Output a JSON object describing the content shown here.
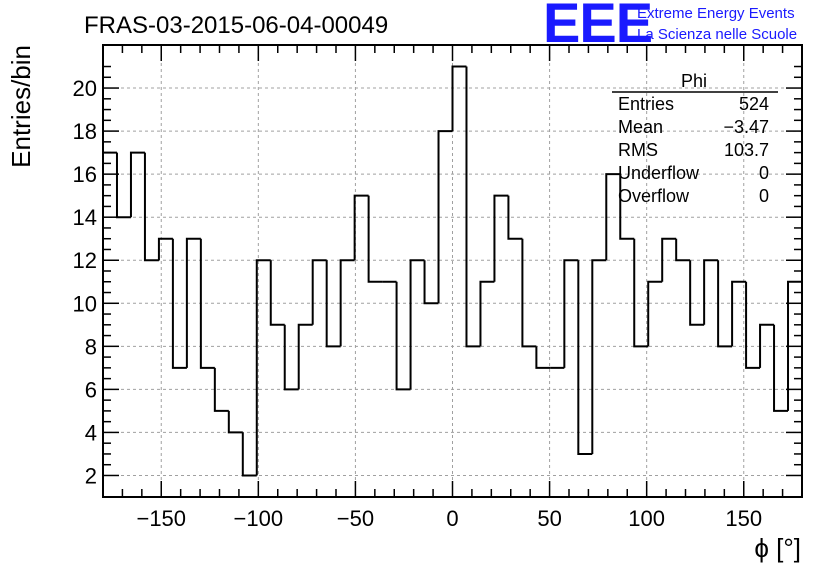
{
  "chart_data": {
    "type": "histogram",
    "title": "FRAS-03-2015-06-04-00049",
    "xlabel": "ϕ [°]",
    "ylabel": "Entries/bin",
    "xlim": [
      -180,
      180
    ],
    "ylim": [
      1,
      22
    ],
    "bin_width": 7.2,
    "xticks": [
      -150,
      -100,
      -50,
      0,
      50,
      100,
      150
    ],
    "xtick_labels": [
      "−150",
      "−100",
      "−50",
      "0",
      "50",
      "100",
      "150"
    ],
    "yticks": [
      2,
      4,
      6,
      8,
      10,
      12,
      14,
      16,
      18,
      20
    ],
    "grid": true,
    "counts": [
      17,
      14,
      17,
      12,
      13,
      7,
      13,
      7,
      5,
      4,
      2,
      12,
      9,
      6,
      9,
      12,
      8,
      12,
      15,
      11,
      11,
      6,
      12,
      10,
      18,
      21,
      8,
      11,
      15,
      13,
      8,
      7,
      7,
      12,
      3,
      12,
      16,
      13,
      8,
      11,
      13,
      12,
      9,
      12,
      8,
      11,
      7,
      9,
      5,
      11
    ],
    "stats": {
      "name": "Phi",
      "rows": [
        {
          "label": "Entries",
          "value": "524"
        },
        {
          "label": "Mean",
          "value": "−3.47"
        },
        {
          "label": "RMS",
          "value": "103.7"
        },
        {
          "label": "Underflow",
          "value": "0"
        },
        {
          "label": "Overflow",
          "value": "0"
        }
      ]
    }
  },
  "logo": {
    "mark": "EEE",
    "line1": "Extreme Energy Events",
    "line2": "La Scienza nelle Scuole"
  },
  "colors": {
    "logo": "#1a1aff",
    "line": "#000000",
    "grid": "#a0a0a0"
  }
}
